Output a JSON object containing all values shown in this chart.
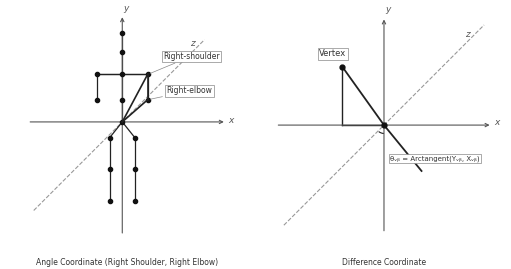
{
  "bg_color": "#ffffff",
  "axis_color": "#555555",
  "line_color": "#222222",
  "dashed_color": "#999999",
  "dot_color": "#111111",
  "label_color": "#333333",
  "left_title": "Angle Coordinate (Right Shoulder, Right Elbow)",
  "right_title": "Difference Coordinate",
  "annotation_shoulder": "Right-shoulder",
  "annotation_elbow": "Right-elbow",
  "annotation_vertex": "Vertex",
  "annotation_theta": "θᵥᵦ = Arctangent(Yᵥᵦ, Xᵥᵦ)"
}
